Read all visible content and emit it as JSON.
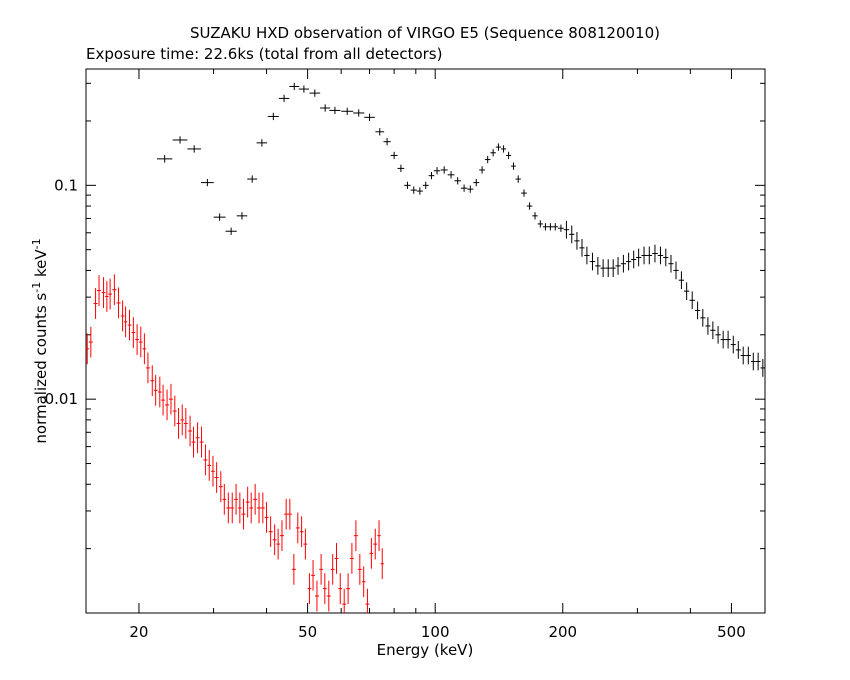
{
  "chart_data": {
    "type": "scatter",
    "title": "SUZAKU HXD observation of VIRGO E5 (Sequence 808120010)",
    "subtitle": "Exposure time: 22.6ks (total from all detectors)",
    "xlabel": "Energy (keV)",
    "ylabel": "normalized counts s^-1 keV^-1",
    "x_scale": "log",
    "y_scale": "log",
    "xlim": [
      15,
      600
    ],
    "ylim": [
      0.001,
      0.35
    ],
    "x_ticks": [
      {
        "value": 20,
        "label": "20"
      },
      {
        "value": 50,
        "label": "50"
      },
      {
        "value": 100,
        "label": "100"
      },
      {
        "value": 200,
        "label": "200"
      },
      {
        "value": 500,
        "label": "500"
      }
    ],
    "y_ticks": [
      {
        "value": 0.1,
        "label": "0.1"
      },
      {
        "value": 0.01,
        "label": "0.01"
      }
    ],
    "grid": false,
    "series": [
      {
        "color": "#000000",
        "points": [
          [
            23.0,
            0.133
          ],
          [
            25.0,
            0.163
          ],
          [
            27.0,
            0.148
          ],
          [
            29.0,
            0.103
          ],
          [
            31.0,
            0.071
          ],
          [
            33.0,
            0.061
          ],
          [
            35.0,
            0.072
          ],
          [
            37.0,
            0.107
          ],
          [
            39.0,
            0.158
          ],
          [
            41.5,
            0.21
          ],
          [
            44.0,
            0.255
          ],
          [
            46.5,
            0.29
          ],
          [
            49.0,
            0.282
          ],
          [
            52.0,
            0.27
          ],
          [
            55.0,
            0.23
          ],
          [
            58.0,
            0.224
          ],
          [
            62.0,
            0.222
          ],
          [
            66.0,
            0.218
          ],
          [
            70.0,
            0.208
          ],
          [
            74.0,
            0.178
          ],
          [
            77.0,
            0.16
          ],
          [
            80.0,
            0.138
          ],
          [
            83.0,
            0.12
          ],
          [
            86.0,
            0.1
          ],
          [
            89.0,
            0.095
          ],
          [
            92.0,
            0.094
          ],
          [
            95.0,
            0.1
          ],
          [
            98.0,
            0.111
          ],
          [
            101.0,
            0.117
          ],
          [
            105.0,
            0.118
          ],
          [
            109.0,
            0.112
          ],
          [
            113.0,
            0.105
          ],
          [
            117.0,
            0.097
          ],
          [
            121.0,
            0.096
          ],
          [
            125.0,
            0.103
          ],
          [
            129.0,
            0.118
          ],
          [
            133.0,
            0.132
          ],
          [
            137.0,
            0.142
          ],
          [
            141.0,
            0.151
          ],
          [
            145.0,
            0.148
          ],
          [
            149.0,
            0.138
          ],
          [
            153.0,
            0.123
          ],
          [
            157.0,
            0.107
          ],
          [
            162.0,
            0.092
          ],
          [
            167.0,
            0.08
          ],
          [
            172.0,
            0.072
          ],
          [
            177.0,
            0.066
          ],
          [
            182.0,
            0.064
          ],
          [
            187.0,
            0.064
          ],
          [
            192.0,
            0.064
          ],
          [
            198.0,
            0.063
          ],
          [
            204.0,
            0.062
          ],
          [
            210.0,
            0.059
          ],
          [
            216.0,
            0.055
          ],
          [
            222.0,
            0.051
          ],
          [
            228.0,
            0.047
          ],
          [
            235.0,
            0.044
          ],
          [
            242.0,
            0.042
          ],
          [
            249.0,
            0.041
          ],
          [
            256.0,
            0.041
          ],
          [
            263.0,
            0.041
          ],
          [
            270.0,
            0.042
          ],
          [
            278.0,
            0.043
          ],
          [
            286.0,
            0.044
          ],
          [
            294.0,
            0.045
          ],
          [
            302.0,
            0.046
          ],
          [
            311.0,
            0.047
          ],
          [
            320.0,
            0.047
          ],
          [
            330.0,
            0.048
          ],
          [
            340.0,
            0.047
          ],
          [
            350.0,
            0.046
          ],
          [
            360.0,
            0.043
          ],
          [
            370.0,
            0.04
          ],
          [
            381.0,
            0.036
          ],
          [
            392.0,
            0.032
          ],
          [
            404.0,
            0.029
          ],
          [
            416.0,
            0.026
          ],
          [
            428.0,
            0.024
          ],
          [
            440.0,
            0.022
          ],
          [
            452.0,
            0.021
          ],
          [
            465.0,
            0.02
          ],
          [
            478.0,
            0.019
          ],
          [
            491.0,
            0.019
          ],
          [
            505.0,
            0.018
          ],
          [
            519.0,
            0.017
          ],
          [
            533.0,
            0.016
          ],
          [
            548.0,
            0.016
          ],
          [
            563.0,
            0.015
          ],
          [
            578.0,
            0.015
          ],
          [
            593.0,
            0.014
          ]
        ]
      },
      {
        "color": "#ff0000",
        "points": [
          [
            15.1,
            0.0172
          ],
          [
            15.4,
            0.0185
          ],
          [
            15.8,
            0.028
          ],
          [
            16.1,
            0.0322
          ],
          [
            16.5,
            0.0315
          ],
          [
            16.8,
            0.0302
          ],
          [
            17.1,
            0.031
          ],
          [
            17.5,
            0.0325
          ],
          [
            17.9,
            0.0282
          ],
          [
            18.3,
            0.0245
          ],
          [
            18.6,
            0.023
          ],
          [
            19.0,
            0.0222
          ],
          [
            19.4,
            0.0205
          ],
          [
            19.8,
            0.019
          ],
          [
            20.2,
            0.0185
          ],
          [
            20.6,
            0.0172
          ],
          [
            21.0,
            0.014
          ],
          [
            21.5,
            0.0122
          ],
          [
            21.9,
            0.011
          ],
          [
            22.4,
            0.0108
          ],
          [
            22.8,
            0.0099
          ],
          [
            23.3,
            0.0094
          ],
          [
            23.8,
            0.01
          ],
          [
            24.3,
            0.0088
          ],
          [
            24.8,
            0.0077
          ],
          [
            25.3,
            0.008
          ],
          [
            25.8,
            0.0077
          ],
          [
            26.4,
            0.0071
          ],
          [
            26.9,
            0.0063
          ],
          [
            27.5,
            0.0066
          ],
          [
            28.1,
            0.0063
          ],
          [
            28.7,
            0.0052
          ],
          [
            29.3,
            0.0049
          ],
          [
            29.9,
            0.0046
          ],
          [
            30.5,
            0.0043
          ],
          [
            31.2,
            0.0039
          ],
          [
            31.8,
            0.0034
          ],
          [
            32.5,
            0.0031
          ],
          [
            33.2,
            0.0031
          ],
          [
            33.9,
            0.0034
          ],
          [
            34.6,
            0.0031
          ],
          [
            35.3,
            0.0029
          ],
          [
            36.1,
            0.0033
          ],
          [
            36.8,
            0.0031
          ],
          [
            37.6,
            0.0034
          ],
          [
            38.4,
            0.0031
          ],
          [
            39.2,
            0.0031
          ],
          [
            40.0,
            0.0028
          ],
          [
            40.9,
            0.0024
          ],
          [
            41.8,
            0.0022
          ],
          [
            42.6,
            0.0021
          ],
          [
            43.5,
            0.0023
          ],
          [
            44.5,
            0.0029
          ],
          [
            45.4,
            0.0029
          ],
          [
            46.4,
            0.0016
          ],
          [
            47.4,
            0.0025
          ],
          [
            48.4,
            0.0024
          ],
          [
            49.4,
            0.0021
          ],
          [
            50.5,
            0.0013
          ],
          [
            51.5,
            0.0015
          ],
          [
            52.6,
            0.0012
          ],
          [
            53.8,
            0.0016
          ],
          [
            54.9,
            0.0013
          ],
          [
            56.1,
            0.0012
          ],
          [
            57.3,
            0.0016
          ],
          [
            58.5,
            0.0018
          ],
          [
            59.7,
            0.0013
          ],
          [
            61.0,
            0.0011
          ],
          [
            62.3,
            0.0013
          ],
          [
            63.6,
            0.0018
          ],
          [
            65.0,
            0.0023
          ],
          [
            66.4,
            0.0016
          ],
          [
            67.8,
            0.0014
          ],
          [
            69.2,
            0.0011
          ],
          [
            70.7,
            0.0019
          ],
          [
            72.2,
            0.0021
          ],
          [
            73.7,
            0.0023
          ],
          [
            75.0,
            0.0017
          ]
        ]
      }
    ]
  }
}
